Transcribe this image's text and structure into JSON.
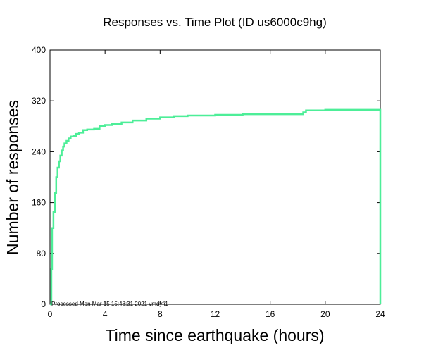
{
  "chart_data": {
    "type": "line",
    "title": "Responses vs. Time Plot (ID us6000c9hg)",
    "xlabel": "Time since earthquake (hours)",
    "ylabel": "Number of responses",
    "xlim": [
      0,
      24
    ],
    "ylim": [
      0,
      400
    ],
    "x_ticks": [
      "0",
      "4",
      "8",
      "12",
      "16",
      "20",
      "24"
    ],
    "y_ticks": [
      "0",
      "80",
      "160",
      "240",
      "320",
      "400"
    ],
    "grid": false,
    "line_color": "#4dee98",
    "footnote": "Processed Mon Mar 15 15:48:31 2021 vmdyfi1",
    "series": [
      {
        "x": [
          0,
          0.1,
          0.15,
          0.25,
          0.35,
          0.45,
          0.55,
          0.65,
          0.75,
          0.85,
          0.95,
          1.05,
          1.2,
          1.35,
          1.5,
          1.7,
          1.9,
          2.1,
          2.4,
          2.7,
          3.2,
          3.6,
          4.0,
          4.5,
          5.2,
          6.0,
          7.0,
          8.0,
          9.0,
          10.0,
          12.0,
          14.0,
          16.0,
          18.0,
          18.4,
          18.6,
          20.0,
          22.0,
          24.0,
          24.0
        ],
        "y": [
          0,
          55,
          120,
          145,
          175,
          200,
          215,
          225,
          234,
          242,
          248,
          253,
          257,
          261,
          264,
          265,
          268,
          270,
          274,
          275,
          276,
          280,
          282,
          284,
          286,
          289,
          292,
          294,
          296,
          297,
          298,
          299,
          299,
          299,
          302,
          305,
          306,
          306,
          306,
          0
        ]
      }
    ]
  }
}
